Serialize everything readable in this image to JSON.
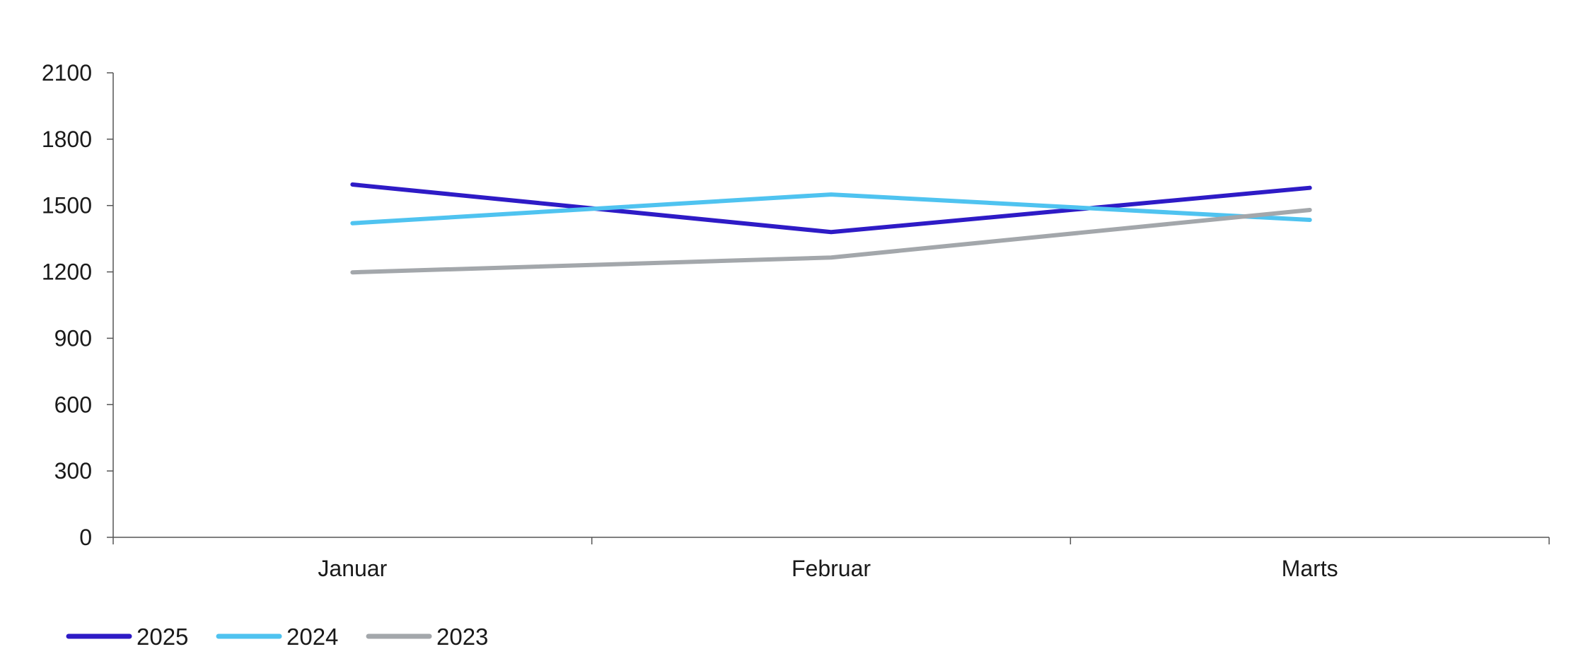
{
  "chart_data": {
    "type": "line",
    "categories": [
      "Januar",
      "Februar",
      "Marts"
    ],
    "ylim": [
      0,
      2100
    ],
    "yticks": [
      0,
      300,
      600,
      900,
      1200,
      1500,
      1800,
      2100
    ],
    "grid": false,
    "legend_position": "bottom-left",
    "series": [
      {
        "name": "2025",
        "color": "#2e1bc6",
        "values": [
          1595,
          1380,
          1580
        ]
      },
      {
        "name": "2024",
        "color": "#4fc3f0",
        "values": [
          1420,
          1550,
          1435
        ]
      },
      {
        "name": "2023",
        "color": "#a3a7ab",
        "values": [
          1198,
          1265,
          1480
        ]
      }
    ]
  }
}
